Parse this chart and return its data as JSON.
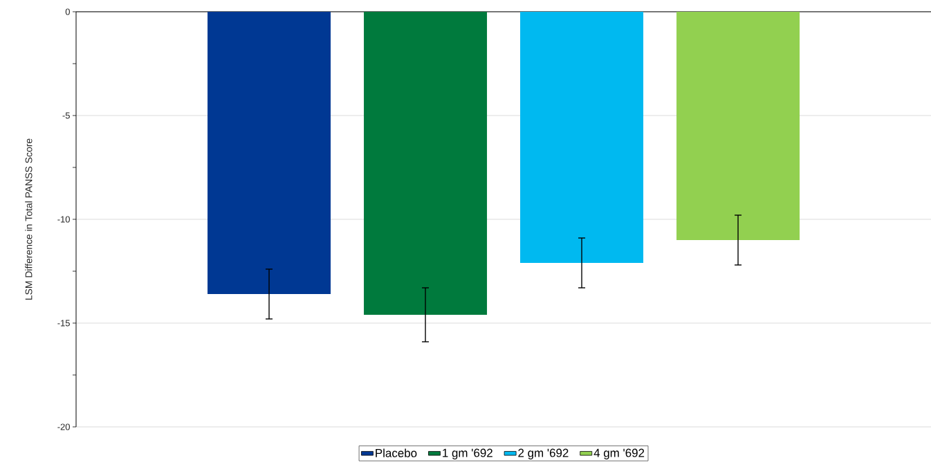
{
  "chart_data": {
    "type": "bar",
    "ylabel": "LSM Difference in Total PANSS Score",
    "categories": [
      null
    ],
    "series": [
      {
        "name": "Placebo",
        "color": "#003893",
        "values": [
          -13.6
        ],
        "errors": [
          1.2
        ]
      },
      {
        "name": "1 gm '692",
        "color": "#007a3d",
        "values": [
          -14.6
        ],
        "errors": [
          1.3
        ]
      },
      {
        "name": "2 gm '692",
        "color": "#00b9f0",
        "values": [
          -12.1
        ],
        "errors": [
          1.2
        ]
      },
      {
        "name": "4 gm '692",
        "color": "#92d050",
        "values": [
          -11.0
        ],
        "errors": [
          1.2
        ]
      }
    ],
    "ylim": [
      -20,
      0
    ],
    "yticks": [
      0,
      {
        "value": -2.5,
        "label": null
      },
      -5,
      {
        "value": -7.5,
        "label": null
      },
      -10,
      {
        "value": -12.5,
        "label": null
      },
      -15,
      {
        "value": -17.5,
        "label": null
      },
      -20
    ],
    "grid": "y",
    "legend": "bottom"
  }
}
